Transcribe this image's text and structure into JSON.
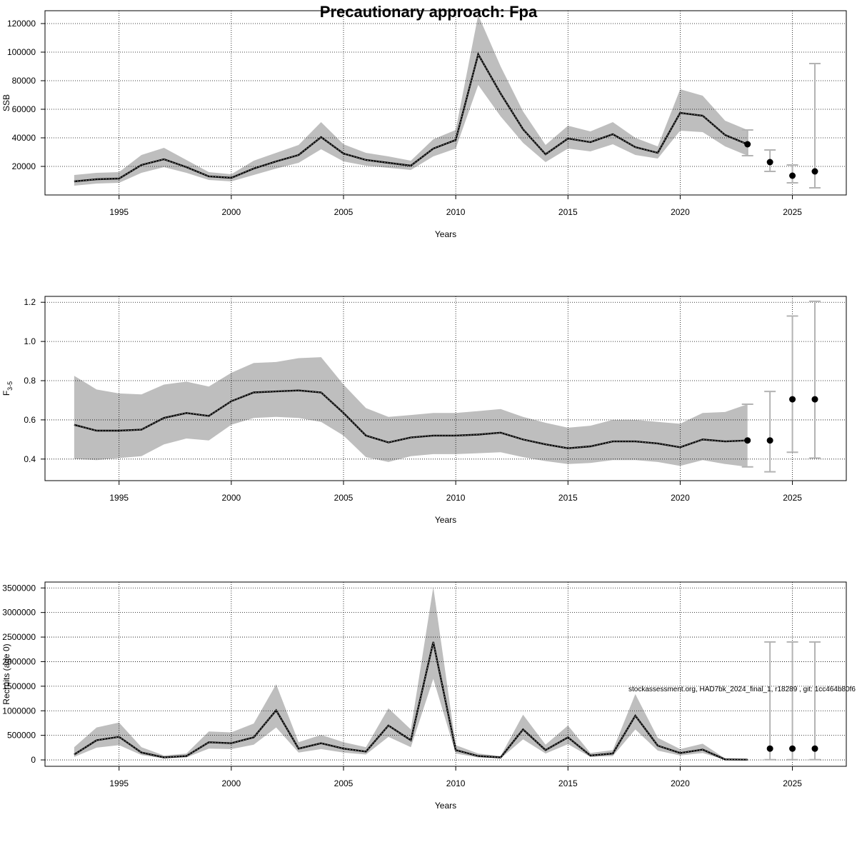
{
  "title": "Precautionary approach: Fpa",
  "watermark": "stockassessment.org, HAD7bk_2024_final_1, r18289 , git: 1cc464b80f6",
  "colors": {
    "band": "#bebebe",
    "line": "#000000",
    "errorbar": "#b3b3b3",
    "grid": "#000000"
  },
  "chart_data": [
    {
      "type": "line",
      "xlabel": "Years",
      "ylabel": "SSB",
      "ylabel_sub": "",
      "xlim": [
        1991.7,
        2027.4
      ],
      "ylim": [
        0,
        129000
      ],
      "x_ticks": [
        1995,
        2000,
        2005,
        2010,
        2015,
        2020,
        2025
      ],
      "y_ticks": [
        20000,
        40000,
        60000,
        80000,
        100000,
        120000
      ],
      "y_tick_labels": [
        "20000",
        "40000",
        "60000",
        "80000",
        "100000",
        "120000"
      ],
      "grid": true,
      "years": [
        1993,
        1994,
        1995,
        1996,
        1997,
        1998,
        1999,
        2000,
        2001,
        2002,
        2003,
        2004,
        2005,
        2006,
        2007,
        2008,
        2009,
        2010,
        2011,
        2012,
        2013,
        2014,
        2015,
        2016,
        2017,
        2018,
        2019,
        2020,
        2021,
        2022,
        2023
      ],
      "estimate": [
        9500,
        11000,
        11500,
        21000,
        25000,
        19500,
        13000,
        12000,
        18500,
        23500,
        28000,
        40500,
        29000,
        24500,
        22500,
        20500,
        32500,
        38500,
        98500,
        71000,
        46000,
        28500,
        39500,
        37000,
        42500,
        33500,
        29500,
        57500,
        55500,
        42000,
        35500
      ],
      "lower": [
        6500,
        8000,
        8500,
        15500,
        19500,
        15500,
        10500,
        9500,
        14000,
        18500,
        22500,
        32000,
        23500,
        20500,
        19000,
        17500,
        27000,
        32500,
        77000,
        55000,
        36500,
        23000,
        32500,
        30500,
        35500,
        28000,
        25500,
        45000,
        44000,
        34000,
        27500
      ],
      "upper": [
        14000,
        15500,
        16000,
        28000,
        33000,
        24500,
        16000,
        14500,
        24000,
        29500,
        35000,
        51000,
        35500,
        29500,
        27000,
        24000,
        39000,
        45500,
        126000,
        90000,
        58500,
        35000,
        48500,
        44500,
        51000,
        40000,
        34000,
        74000,
        69500,
        52000,
        45500
      ],
      "forecast": [
        {
          "year": 2023,
          "median": 35500,
          "low": 27500,
          "high": 45500
        },
        {
          "year": 2024,
          "median": 23000,
          "low": 16500,
          "high": 31500
        },
        {
          "year": 2025,
          "median": 13500,
          "low": 8500,
          "high": 21000
        },
        {
          "year": 2026,
          "median": 16500,
          "low": 5000,
          "high": 92000
        }
      ]
    },
    {
      "type": "line",
      "xlabel": "Years",
      "ylabel": "F",
      "ylabel_sub": "3-5",
      "xlim": [
        1991.7,
        2027.4
      ],
      "ylim": [
        0.29,
        1.23
      ],
      "x_ticks": [
        1995,
        2000,
        2005,
        2010,
        2015,
        2020,
        2025
      ],
      "y_ticks": [
        0.4,
        0.6,
        0.8,
        1.0,
        1.2
      ],
      "y_tick_labels": [
        "0.4",
        "0.6",
        "0.8",
        "1.0",
        "1.2"
      ],
      "grid": true,
      "years": [
        1993,
        1994,
        1995,
        1996,
        1997,
        1998,
        1999,
        2000,
        2001,
        2002,
        2003,
        2004,
        2005,
        2006,
        2007,
        2008,
        2009,
        2010,
        2011,
        2012,
        2013,
        2014,
        2015,
        2016,
        2017,
        2018,
        2019,
        2020,
        2021,
        2022,
        2023
      ],
      "estimate": [
        0.575,
        0.545,
        0.545,
        0.55,
        0.61,
        0.635,
        0.62,
        0.695,
        0.74,
        0.745,
        0.75,
        0.74,
        0.635,
        0.52,
        0.485,
        0.51,
        0.52,
        0.52,
        0.525,
        0.535,
        0.5,
        0.475,
        0.455,
        0.465,
        0.49,
        0.49,
        0.48,
        0.46,
        0.5,
        0.49,
        0.495
      ],
      "lower": [
        0.4,
        0.395,
        0.405,
        0.415,
        0.475,
        0.505,
        0.495,
        0.575,
        0.61,
        0.615,
        0.61,
        0.59,
        0.52,
        0.41,
        0.385,
        0.415,
        0.425,
        0.425,
        0.43,
        0.435,
        0.41,
        0.39,
        0.375,
        0.38,
        0.395,
        0.395,
        0.385,
        0.365,
        0.395,
        0.375,
        0.36
      ],
      "upper": [
        0.825,
        0.755,
        0.735,
        0.73,
        0.78,
        0.795,
        0.77,
        0.84,
        0.89,
        0.895,
        0.915,
        0.92,
        0.78,
        0.66,
        0.615,
        0.625,
        0.635,
        0.635,
        0.645,
        0.655,
        0.615,
        0.585,
        0.56,
        0.57,
        0.6,
        0.6,
        0.59,
        0.58,
        0.635,
        0.64,
        0.68
      ]
    },
    {
      "type": "line",
      "xlabel": "Years",
      "ylabel": "Recruits (age 0)",
      "ylabel_sub": "",
      "xlim": [
        1991.7,
        2027.4
      ],
      "ylim": [
        -130000,
        3620000
      ],
      "x_ticks": [
        1995,
        2000,
        2005,
        2010,
        2015,
        2020,
        2025
      ],
      "y_ticks": [
        0,
        500000,
        1000000,
        1500000,
        2000000,
        2500000,
        3000000,
        3500000
      ],
      "y_tick_labels": [
        "0",
        "500000",
        "1000000",
        "1500000",
        "2000000",
        "2500000",
        "3000000",
        "3500000"
      ],
      "grid": true,
      "years": [
        1993,
        1994,
        1995,
        1996,
        1997,
        1998,
        1999,
        2000,
        2001,
        2002,
        2003,
        2004,
        2005,
        2006,
        2007,
        2008,
        2009,
        2010,
        2011,
        2012,
        2013,
        2014,
        2015,
        2016,
        2017,
        2018,
        2019,
        2020,
        2021,
        2022,
        2023
      ],
      "estimate": [
        110000,
        400000,
        470000,
        150000,
        50000,
        80000,
        360000,
        340000,
        460000,
        1010000,
        230000,
        340000,
        230000,
        170000,
        700000,
        400000,
        2400000,
        200000,
        80000,
        50000,
        620000,
        200000,
        460000,
        90000,
        130000,
        900000,
        290000,
        140000,
        210000,
        10000,
        5000
      ],
      "lower": [
        60000,
        250000,
        300000,
        100000,
        30000,
        50000,
        230000,
        220000,
        310000,
        660000,
        150000,
        220000,
        150000,
        110000,
        470000,
        260000,
        1650000,
        130000,
        50000,
        30000,
        420000,
        130000,
        320000,
        60000,
        80000,
        620000,
        190000,
        90000,
        140000,
        2000,
        1000
      ],
      "upper": [
        260000,
        660000,
        760000,
        260000,
        90000,
        130000,
        580000,
        560000,
        740000,
        1540000,
        360000,
        510000,
        360000,
        260000,
        1050000,
        620000,
        3520000,
        300000,
        130000,
        80000,
        920000,
        310000,
        700000,
        140000,
        200000,
        1340000,
        450000,
        220000,
        330000,
        30000,
        20000
      ],
      "forecast": [
        {
          "year": 2024,
          "median": 230000,
          "low": 5000,
          "high": 2400000
        },
        {
          "year": 2025,
          "median": 230000,
          "low": 5000,
          "high": 2400000
        },
        {
          "year": 2026,
          "median": 230000,
          "low": 5000,
          "high": 2400000
        }
      ]
    }
  ]
}
